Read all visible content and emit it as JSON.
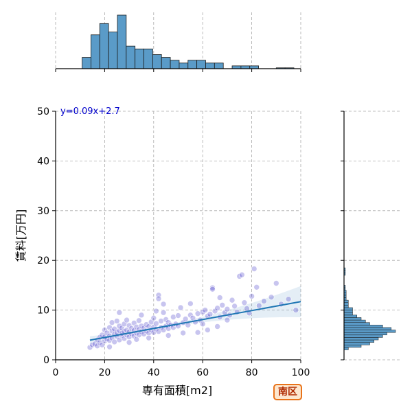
{
  "chart_data": {
    "type": "scatter",
    "xlabel": "専有面積[m2]",
    "ylabel": "賃料[万円]",
    "xlim": [
      0,
      100
    ],
    "ylim": [
      0,
      50
    ],
    "x_ticks": [
      "0",
      "20",
      "40",
      "60",
      "80",
      "100"
    ],
    "y_ticks": [
      "0",
      "10",
      "20",
      "30",
      "40",
      "50"
    ],
    "grid": true,
    "regression": {
      "equation": "y=0.09x+2.7",
      "slope": 0.09,
      "intercept": 2.7,
      "x_range": [
        14,
        100
      ]
    },
    "points": [
      [
        14,
        2.5
      ],
      [
        15,
        3.0
      ],
      [
        16,
        3.2
      ],
      [
        17,
        2.8
      ],
      [
        17,
        4.0
      ],
      [
        18,
        3.5
      ],
      [
        18,
        4.5
      ],
      [
        19,
        3.0
      ],
      [
        19,
        5.0
      ],
      [
        20,
        3.8
      ],
      [
        20,
        4.6
      ],
      [
        20,
        6.0
      ],
      [
        21,
        4.2
      ],
      [
        21,
        5.4
      ],
      [
        22,
        3.9
      ],
      [
        22,
        4.8
      ],
      [
        22,
        6.5
      ],
      [
        23,
        4.4
      ],
      [
        23,
        5.8
      ],
      [
        23,
        7.5
      ],
      [
        24,
        3.6
      ],
      [
        24,
        5.1
      ],
      [
        24,
        6.2
      ],
      [
        25,
        4.7
      ],
      [
        25,
        5.5
      ],
      [
        25,
        7.8
      ],
      [
        26,
        4.0
      ],
      [
        26,
        5.9
      ],
      [
        26,
        6.8
      ],
      [
        27,
        4.9
      ],
      [
        27,
        5.3
      ],
      [
        27,
        6.4
      ],
      [
        28,
        4.3
      ],
      [
        28,
        5.7
      ],
      [
        28,
        7.2
      ],
      [
        29,
        5.0
      ],
      [
        29,
        6.0
      ],
      [
        29,
        8.0
      ],
      [
        30,
        4.6
      ],
      [
        30,
        5.6
      ],
      [
        30,
        6.9
      ],
      [
        31,
        5.2
      ],
      [
        31,
        6.3
      ],
      [
        32,
        4.8
      ],
      [
        32,
        5.9
      ],
      [
        32,
        7.4
      ],
      [
        33,
        5.4
      ],
      [
        33,
        6.6
      ],
      [
        34,
        5.0
      ],
      [
        34,
        6.1
      ],
      [
        34,
        7.9
      ],
      [
        35,
        5.6
      ],
      [
        35,
        6.8
      ],
      [
        36,
        5.2
      ],
      [
        36,
        6.4
      ],
      [
        37,
        5.8
      ],
      [
        37,
        7.1
      ],
      [
        38,
        5.4
      ],
      [
        38,
        6.7
      ],
      [
        39,
        6.0
      ],
      [
        39,
        7.6
      ],
      [
        40,
        5.5
      ],
      [
        40,
        6.6
      ],
      [
        40,
        8.4
      ],
      [
        41,
        6.2
      ],
      [
        41,
        7.3
      ],
      [
        42,
        5.7
      ],
      [
        42,
        13.0
      ],
      [
        42,
        12.3
      ],
      [
        43,
        6.5
      ],
      [
        43,
        7.8
      ],
      [
        44,
        6.0
      ],
      [
        44,
        9.5
      ],
      [
        45,
        6.8
      ],
      [
        45,
        8.1
      ],
      [
        46,
        6.3
      ],
      [
        46,
        7.5
      ],
      [
        47,
        7.0
      ],
      [
        48,
        6.5
      ],
      [
        48,
        8.6
      ],
      [
        49,
        7.2
      ],
      [
        50,
        6.8
      ],
      [
        50,
        8.9
      ],
      [
        51,
        10.5
      ],
      [
        52,
        7.5
      ],
      [
        53,
        8.2
      ],
      [
        54,
        7.0
      ],
      [
        55,
        9.0
      ],
      [
        56,
        8.4
      ],
      [
        57,
        7.6
      ],
      [
        58,
        9.3
      ],
      [
        59,
        8.0
      ],
      [
        60,
        9.6
      ],
      [
        60,
        7.2
      ],
      [
        61,
        10.0
      ],
      [
        62,
        8.8
      ],
      [
        63,
        9.2
      ],
      [
        64,
        14.5
      ],
      [
        64,
        14.2
      ],
      [
        65,
        9.8
      ],
      [
        66,
        10.4
      ],
      [
        67,
        8.6
      ],
      [
        68,
        11.0
      ],
      [
        69,
        9.5
      ],
      [
        70,
        10.2
      ],
      [
        71,
        9.0
      ],
      [
        72,
        12.0
      ],
      [
        73,
        10.8
      ],
      [
        74,
        9.6
      ],
      [
        75,
        16.8
      ],
      [
        76,
        17.1
      ],
      [
        77,
        11.5
      ],
      [
        78,
        10.3
      ],
      [
        79,
        9.4
      ],
      [
        80,
        12.8
      ],
      [
        81,
        18.3
      ],
      [
        82,
        14.6
      ],
      [
        83,
        10.9
      ],
      [
        85,
        11.8
      ],
      [
        88,
        12.6
      ],
      [
        90,
        15.4
      ],
      [
        92,
        11.2
      ],
      [
        95,
        12.2
      ],
      [
        98,
        10.0
      ],
      [
        26,
        9.5
      ],
      [
        35,
        9.0
      ],
      [
        44,
        11.2
      ],
      [
        58,
        5.5
      ],
      [
        62,
        6.0
      ],
      [
        70,
        8.0
      ],
      [
        33,
        4.1
      ],
      [
        38,
        4.4
      ],
      [
        46,
        4.9
      ],
      [
        52,
        5.4
      ],
      [
        66,
        6.7
      ],
      [
        30,
        3.5
      ],
      [
        22,
        2.6
      ],
      [
        41,
        9.8
      ],
      [
        55,
        11.3
      ],
      [
        67,
        12.5
      ]
    ],
    "x_marginal": {
      "bin_edges": [
        0,
        3.6,
        7.2,
        10.8,
        14.4,
        18,
        21.6,
        25.2,
        28.8,
        32.4,
        36,
        39.6,
        43.2,
        46.8,
        50.4,
        54,
        57.6,
        61.2,
        64.8,
        68.4,
        72,
        75.6,
        79.2,
        82.8,
        86.4,
        90,
        93.6,
        97.2,
        100.8
      ],
      "counts": [
        0,
        0,
        0,
        4,
        12,
        16,
        13,
        19,
        8,
        7,
        7,
        5,
        4,
        3,
        2,
        3,
        3,
        2,
        2,
        0,
        1,
        1,
        1,
        0,
        0,
        0.3,
        0.3,
        0
      ]
    },
    "y_marginal": {
      "bin_edges": [
        0,
        0.5,
        1,
        1.5,
        2,
        2.5,
        3,
        3.5,
        4,
        4.5,
        5,
        5.5,
        6,
        6.5,
        7,
        7.5,
        8,
        8.5,
        9,
        9.5,
        10,
        10.5,
        11,
        11.5,
        12,
        12.5,
        13,
        13.5,
        14,
        14.5,
        15,
        15.5,
        16,
        16.5,
        17,
        17.5,
        18,
        18.5,
        19,
        19.5,
        20
      ],
      "counts": [
        0,
        0,
        0,
        0,
        1,
        4,
        6,
        7,
        8,
        9,
        10,
        12,
        11,
        9,
        6,
        5,
        4,
        3,
        2,
        2,
        2,
        1,
        1,
        1,
        0.5,
        0.5,
        0.5,
        0.5,
        0.3,
        0.3,
        0,
        0,
        0,
        0,
        0.3,
        0.3,
        0.3,
        0,
        0,
        0,
        0
      ]
    },
    "colors": {
      "points": "#3a2fc4",
      "line": "#1f77b4",
      "bars": "#5a9bc8",
      "annotation": "#0000cc"
    }
  },
  "badge": {
    "label": "南区"
  }
}
